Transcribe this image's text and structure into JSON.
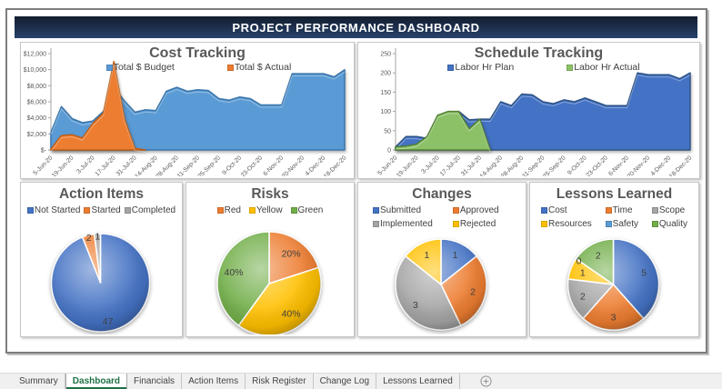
{
  "header": {
    "title": "PROJECT PERFORMANCE DASHBOARD"
  },
  "chart_data": [
    {
      "id": "cost-tracking",
      "type": "area",
      "title": "Cost Tracking",
      "x": [
        "5-Jun-20",
        "12-Jun-20",
        "19-Jun-20",
        "26-Jun-20",
        "3-Jul-20",
        "10-Jul-20",
        "17-Jul-20",
        "24-Jul-20",
        "31-Jul-20",
        "7-Aug-20",
        "14-Aug-20",
        "21-Aug-20",
        "28-Aug-20",
        "4-Sep-20",
        "11-Sep-20",
        "18-Sep-20",
        "25-Sep-20",
        "2-Oct-20",
        "9-Oct-20",
        "16-Oct-20",
        "23-Oct-20",
        "30-Oct-20",
        "6-Nov-20",
        "13-Nov-20",
        "20-Nov-20",
        "27-Nov-20",
        "4-Dec-20",
        "11-Dec-20",
        "18-Dec-20"
      ],
      "label_every": 2,
      "ylim": [
        0,
        12000
      ],
      "yticks": [
        {
          "v": 0,
          "label": "$-"
        },
        {
          "v": 2000,
          "label": "$2,000"
        },
        {
          "v": 4000,
          "label": "$4,000"
        },
        {
          "v": 6000,
          "label": "$6,000"
        },
        {
          "v": 8000,
          "label": "$8,000"
        },
        {
          "v": 10000,
          "label": "$10,000"
        },
        {
          "v": 12000,
          "label": "$12,000"
        }
      ],
      "series": [
        {
          "name": "Total $ Budget",
          "color": "#5B9BD5",
          "edge": "#3A76AC",
          "values": [
            2200,
            5400,
            3900,
            3400,
            3600,
            4800,
            7800,
            6100,
            4700,
            5000,
            4900,
            7300,
            7800,
            7300,
            7500,
            7400,
            6400,
            6200,
            6600,
            6400,
            5600,
            5600,
            5600,
            9500,
            9500,
            9500,
            9500,
            9100,
            10000
          ]
        },
        {
          "name": "Total $ Actual",
          "color": "#ED7D31",
          "edge": "#C05F15",
          "values": [
            100,
            1800,
            1900,
            1500,
            3300,
            4600,
            11000,
            3900,
            200,
            0,
            0,
            0,
            0,
            0,
            0,
            0,
            0,
            0,
            0,
            0,
            0,
            0,
            0,
            0,
            0,
            0,
            0,
            0,
            0
          ]
        }
      ],
      "legend_position": "top"
    },
    {
      "id": "schedule-tracking",
      "type": "area",
      "title": "Schedule Tracking",
      "x": [
        "5-Jun-20",
        "12-Jun-20",
        "19-Jun-20",
        "26-Jun-20",
        "3-Jul-20",
        "10-Jul-20",
        "17-Jul-20",
        "24-Jul-20",
        "31-Jul-20",
        "7-Aug-20",
        "14-Aug-20",
        "21-Aug-20",
        "28-Aug-20",
        "4-Sep-20",
        "11-Sep-20",
        "18-Sep-20",
        "25-Sep-20",
        "2-Oct-20",
        "9-Oct-20",
        "16-Oct-20",
        "23-Oct-20",
        "30-Oct-20",
        "6-Nov-20",
        "13-Nov-20",
        "20-Nov-20",
        "27-Nov-20",
        "4-Dec-20",
        "11-Dec-20",
        "18-Dec-20"
      ],
      "label_every": 2,
      "ylim": [
        0,
        250
      ],
      "yticks": [
        {
          "v": 0,
          "label": "0"
        },
        {
          "v": 50,
          "label": "50"
        },
        {
          "v": 100,
          "label": "100"
        },
        {
          "v": 150,
          "label": "150"
        },
        {
          "v": 200,
          "label": "200"
        },
        {
          "v": 250,
          "label": "250"
        }
      ],
      "series": [
        {
          "name": "Labor Hr Plan",
          "color": "#4472C4",
          "edge": "#2E5486",
          "values": [
            8,
            35,
            35,
            30,
            40,
            60,
            100,
            78,
            80,
            80,
            125,
            115,
            145,
            143,
            125,
            120,
            130,
            125,
            135,
            125,
            115,
            115,
            115,
            200,
            195,
            195,
            195,
            185,
            200
          ]
        },
        {
          "name": "Labor Hr Actual",
          "color": "#8CC168",
          "edge": "#538135",
          "values": [
            8,
            10,
            15,
            35,
            90,
            100,
            100,
            55,
            80,
            0,
            0,
            0,
            0,
            0,
            0,
            0,
            0,
            0,
            0,
            0,
            0,
            0,
            0,
            0,
            0,
            0,
            0,
            0,
            0
          ]
        }
      ],
      "legend_position": "top"
    },
    {
      "id": "action-items",
      "type": "pie",
      "title": "Action Items",
      "legend_cols": 3,
      "slices": [
        {
          "label": "Not Started",
          "value": 47,
          "color": "#4472C4",
          "data_label": "47"
        },
        {
          "label": "Started",
          "value": 2,
          "color": "#ED7D31",
          "data_label": "2"
        },
        {
          "label": "Completed",
          "value": 1,
          "color": "#A5A5A5",
          "data_label": "1"
        }
      ]
    },
    {
      "id": "risks",
      "type": "pie",
      "title": "Risks",
      "legend_cols": 3,
      "slices": [
        {
          "label": "Red",
          "value": 20,
          "color": "#ED7D31",
          "data_label": "20%"
        },
        {
          "label": "Yellow",
          "value": 40,
          "color": "#FFC000",
          "data_label": "40%"
        },
        {
          "label": "Green",
          "value": 40,
          "color": "#70AD47",
          "data_label": "40%"
        }
      ]
    },
    {
      "id": "changes",
      "type": "pie",
      "title": "Changes",
      "legend_cols": 2,
      "slices": [
        {
          "label": "Submitted",
          "value": 1,
          "color": "#4472C4",
          "data_label": "1"
        },
        {
          "label": "Approved",
          "value": 2,
          "color": "#ED7D31",
          "data_label": "2"
        },
        {
          "label": "Implemented",
          "value": 3,
          "color": "#A5A5A5",
          "data_label": "3"
        },
        {
          "label": "Rejected",
          "value": 1,
          "color": "#FFC000",
          "data_label": "1"
        }
      ]
    },
    {
      "id": "lessons-learned",
      "type": "pie",
      "title": "Lessons Learned",
      "legend_cols": 3,
      "slices": [
        {
          "label": "Cost",
          "value": 5,
          "color": "#4472C4",
          "data_label": "5"
        },
        {
          "label": "Time",
          "value": 3,
          "color": "#ED7D31",
          "data_label": "3"
        },
        {
          "label": "Scope",
          "value": 2,
          "color": "#A5A5A5",
          "data_label": "2"
        },
        {
          "label": "Resources",
          "value": 1,
          "color": "#FFC000",
          "data_label": "1"
        },
        {
          "label": "Safety",
          "value": 0,
          "color": "#5B9BD5",
          "data_label": "0"
        },
        {
          "label": "Quality",
          "value": 2,
          "color": "#70AD47",
          "data_label": "2"
        }
      ]
    }
  ],
  "tabs": {
    "active": "Dashboard",
    "items": [
      "Summary",
      "Dashboard",
      "Financials",
      "Action Items",
      "Risk Register",
      "Change Log",
      "Lessons Learned"
    ],
    "new_sheet_icon": "plus-circle"
  }
}
